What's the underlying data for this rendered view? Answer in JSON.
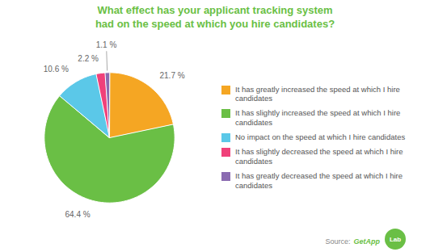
{
  "chart_data": {
    "type": "pie",
    "title": "What effect has your applicant tracking system\nhad on the speed at which you hire candidates?",
    "categories": [
      "It has greatly increased the speed at which I hire candidates",
      "It has slightly increased the speed at which I hire candidates",
      "No impact on the speed at which I hire candidates",
      "It has slightly decreased the speed at which I hire candidates",
      "It has greatly decreased the speed at which I hire candidates"
    ],
    "values": [
      21.7,
      64.4,
      10.6,
      2.2,
      1.1
    ],
    "value_labels": [
      "21.7 %",
      "64.4 %",
      "10.6 %",
      "2.2 %",
      "1.1 %"
    ],
    "colors": [
      "#f5a623",
      "#6abf45",
      "#5bc8e8",
      "#f0417a",
      "#8B6BB1"
    ],
    "data_labels": true,
    "legend": "right",
    "annotations": [
      "Source:",
      "GetApp",
      "Lab"
    ]
  }
}
